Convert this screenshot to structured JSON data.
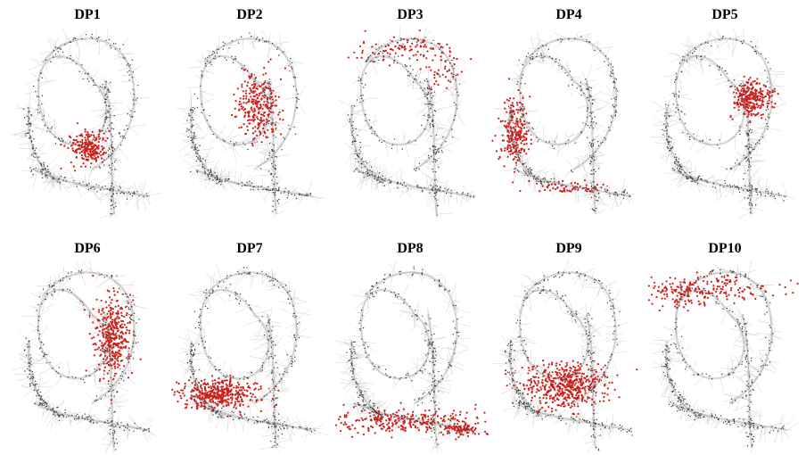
{
  "figure": {
    "panels": [
      {
        "title": "DP1",
        "cluster": "lower-center"
      },
      {
        "title": "DP2",
        "cluster": "center-right"
      },
      {
        "title": "DP3",
        "cluster": "top-ring"
      },
      {
        "title": "DP4",
        "cluster": "left-arm"
      },
      {
        "title": "DP5",
        "cluster": "upper-right"
      },
      {
        "title": "DP6",
        "cluster": "right-middle"
      },
      {
        "title": "DP7",
        "cluster": "bottom-left-band"
      },
      {
        "title": "DP8",
        "cluster": "bottom-tail"
      },
      {
        "title": "DP9",
        "cluster": "lower-middle"
      },
      {
        "title": "DP10",
        "cluster": "top-left-ring"
      }
    ],
    "colors": {
      "network": "#8a8a8a",
      "node": "#3a3a3a",
      "highlight": "#cc1f1a"
    }
  }
}
